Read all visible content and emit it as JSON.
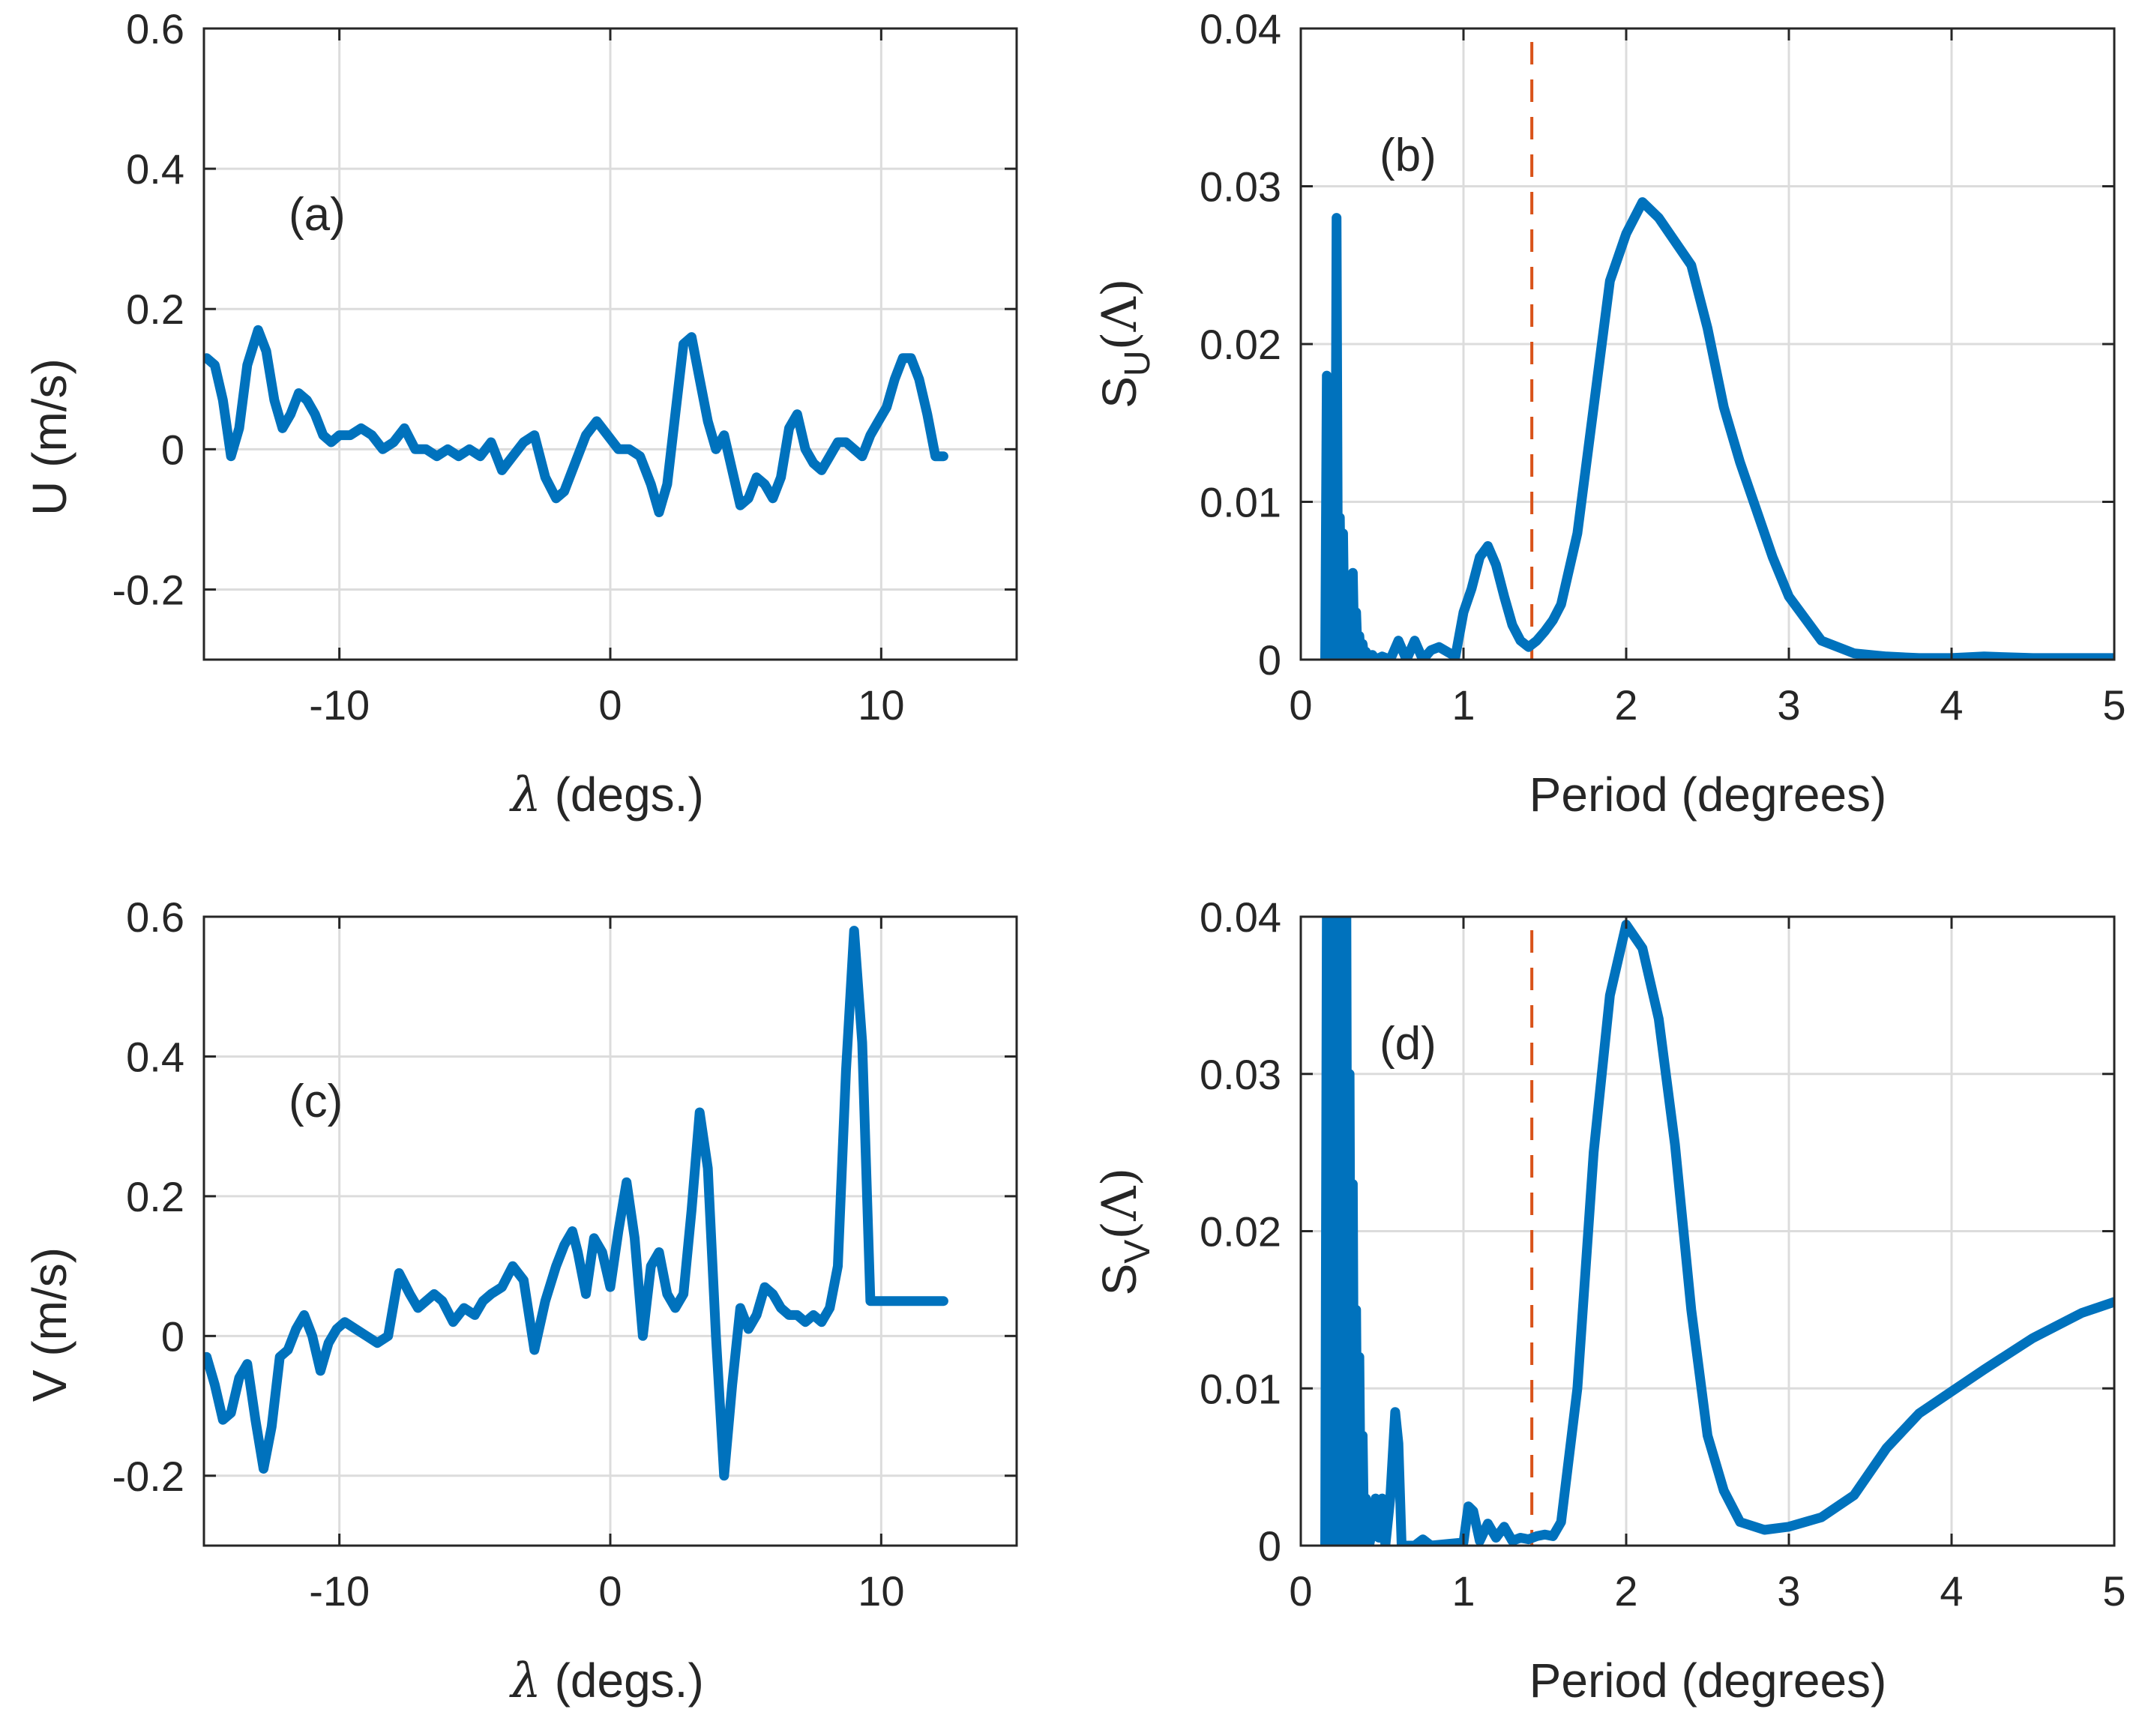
{
  "figure": {
    "panels": [
      {
        "id": "a",
        "label": "(a)",
        "ylabel_text": "U (m/s)",
        "xlabel_symbol": "λ",
        "xlabel_text": " (degs.)"
      },
      {
        "id": "b",
        "label": "(b)",
        "ylabel_base": "S",
        "ylabel_sub": "U",
        "ylabel_arg": "(Λ)",
        "xlabel_text": "Period (degrees)"
      },
      {
        "id": "c",
        "label": "(c)",
        "ylabel_text": "V (m/s)",
        "xlabel_symbol": "λ",
        "xlabel_text": " (degs.)"
      },
      {
        "id": "d",
        "label": "(d)",
        "ylabel_base": "S",
        "ylabel_sub": "V",
        "ylabel_arg": "(Λ)",
        "xlabel_text": "Period (degrees)"
      }
    ]
  },
  "colors": {
    "line": "#0072BD",
    "dashed": "#D95319",
    "grid": "#dcdcdc",
    "axis": "#262626"
  },
  "chart_data": [
    {
      "id": "a",
      "type": "line",
      "title": "(a)",
      "xlabel": "λ (degs.)",
      "ylabel": "U (m/s)",
      "xlim": [
        -15,
        15
      ],
      "ylim": [
        -0.3,
        0.6
      ],
      "xticks": [
        -10,
        0,
        10
      ],
      "xtick_labels": [
        "-10",
        "0",
        "10"
      ],
      "yticks": [
        -0.2,
        0,
        0.2,
        0.4,
        0.6
      ],
      "ytick_labels": [
        "-0.2",
        "0",
        "0.2",
        "0.4",
        "0.6"
      ],
      "grid": true,
      "series": [
        {
          "name": "U",
          "x": [
            -14.9,
            -14.6,
            -14.3,
            -14.0,
            -13.7,
            -13.4,
            -13.0,
            -12.7,
            -12.4,
            -12.1,
            -11.8,
            -11.5,
            -11.2,
            -10.9,
            -10.6,
            -10.3,
            -10.0,
            -9.6,
            -9.2,
            -8.8,
            -8.4,
            -8.0,
            -7.6,
            -7.2,
            -6.8,
            -6.4,
            -6.0,
            -5.6,
            -5.2,
            -4.8,
            -4.4,
            -4.0,
            -3.6,
            -3.2,
            -2.8,
            -2.4,
            -2.0,
            -1.7,
            -1.3,
            -0.9,
            -0.5,
            -0.1,
            0.3,
            0.7,
            1.1,
            1.5,
            1.8,
            2.1,
            2.4,
            2.7,
            3.0,
            3.3,
            3.6,
            3.9,
            4.2,
            4.5,
            4.8,
            5.1,
            5.4,
            5.7,
            6.0,
            6.3,
            6.6,
            6.9,
            7.2,
            7.5,
            7.8,
            8.1,
            8.4,
            8.7,
            9.0,
            9.3,
            9.6,
            9.9,
            10.2,
            10.5,
            10.8,
            11.1,
            11.4,
            11.7,
            12.0,
            12.3
          ],
          "y": [
            0.13,
            0.12,
            0.07,
            -0.01,
            0.03,
            0.12,
            0.17,
            0.14,
            0.07,
            0.03,
            0.05,
            0.08,
            0.07,
            0.05,
            0.02,
            0.01,
            0.02,
            0.02,
            0.03,
            0.02,
            0.0,
            0.01,
            0.03,
            0.0,
            0.0,
            -0.01,
            0.0,
            -0.01,
            0.0,
            -0.01,
            0.01,
            -0.03,
            -0.01,
            0.01,
            0.02,
            -0.04,
            -0.07,
            -0.06,
            -0.02,
            0.02,
            0.04,
            0.02,
            0.0,
            0.0,
            -0.01,
            -0.05,
            -0.09,
            -0.05,
            0.05,
            0.15,
            0.16,
            0.1,
            0.04,
            0.0,
            0.02,
            -0.03,
            -0.08,
            -0.07,
            -0.04,
            -0.05,
            -0.07,
            -0.04,
            0.03,
            0.05,
            0.0,
            -0.02,
            -0.03,
            -0.01,
            0.01,
            0.01,
            0.0,
            -0.01,
            0.02,
            0.04,
            0.06,
            0.1,
            0.13,
            0.13,
            0.1,
            0.05,
            -0.01,
            -0.01
          ]
        }
      ]
    },
    {
      "id": "b",
      "type": "line",
      "title": "(b)",
      "xlabel": "Period (degrees)",
      "ylabel": "S_U(Λ)",
      "xlim": [
        0,
        5
      ],
      "ylim": [
        0,
        0.04
      ],
      "xticks": [
        0,
        1,
        2,
        3,
        4,
        5
      ],
      "xtick_labels": [
        "0",
        "1",
        "2",
        "3",
        "4",
        "5"
      ],
      "yticks": [
        0,
        0.01,
        0.02,
        0.03,
        0.04
      ],
      "ytick_labels": [
        "0",
        "0.01",
        "0.02",
        "0.03",
        "0.04"
      ],
      "grid": true,
      "vline": {
        "x": 1.42,
        "style": "dashed"
      },
      "series": [
        {
          "name": "S_U",
          "x": [
            0.15,
            0.16,
            0.17,
            0.18,
            0.19,
            0.2,
            0.21,
            0.22,
            0.23,
            0.24,
            0.25,
            0.26,
            0.27,
            0.28,
            0.29,
            0.3,
            0.31,
            0.32,
            0.33,
            0.34,
            0.35,
            0.36,
            0.37,
            0.38,
            0.39,
            0.4,
            0.42,
            0.44,
            0.46,
            0.5,
            0.55,
            0.6,
            0.65,
            0.7,
            0.75,
            0.8,
            0.85,
            0.9,
            0.95,
            1.0,
            1.05,
            1.1,
            1.15,
            1.2,
            1.25,
            1.3,
            1.35,
            1.4,
            1.45,
            1.5,
            1.55,
            1.6,
            1.7,
            1.8,
            1.9,
            2.0,
            2.1,
            2.2,
            2.3,
            2.4,
            2.5,
            2.6,
            2.7,
            2.8,
            2.9,
            3.0,
            3.2,
            3.4,
            3.6,
            3.8,
            4.0,
            4.2,
            4.5,
            5.0
          ],
          "y": [
            0.0,
            0.018,
            0.0,
            0.015,
            0.0,
            0.012,
            0.0,
            0.028,
            0.0,
            0.009,
            0.0,
            0.008,
            0.0,
            0.003,
            0.0,
            0.005,
            0.0,
            0.0055,
            0.0,
            0.003,
            0.0,
            0.0015,
            0.0,
            0.001,
            0.0,
            0.0005,
            0.0,
            0.0003,
            0.0,
            0.0002,
            0.0,
            0.0012,
            0.0,
            0.0012,
            0.0,
            0.0006,
            0.0008,
            0.0005,
            0.0002,
            0.003,
            0.0045,
            0.0065,
            0.0072,
            0.006,
            0.004,
            0.0022,
            0.0012,
            0.0008,
            0.0012,
            0.0018,
            0.0025,
            0.0035,
            0.008,
            0.016,
            0.024,
            0.027,
            0.029,
            0.028,
            0.0265,
            0.025,
            0.021,
            0.016,
            0.0125,
            0.0095,
            0.0065,
            0.004,
            0.0012,
            0.0004,
            0.0002,
            0.0001,
            0.0001,
            0.0002,
            0.0001,
            0.0001
          ]
        }
      ]
    },
    {
      "id": "c",
      "type": "line",
      "title": "(c)",
      "xlabel": "λ (degs.)",
      "ylabel": "V (m/s)",
      "xlim": [
        -15,
        15
      ],
      "ylim": [
        -0.3,
        0.6
      ],
      "xticks": [
        -10,
        0,
        10
      ],
      "xtick_labels": [
        "-10",
        "0",
        "10"
      ],
      "yticks": [
        -0.2,
        0,
        0.2,
        0.4,
        0.6
      ],
      "ytick_labels": [
        "-0.2",
        "0",
        "0.2",
        "0.4",
        "0.6"
      ],
      "grid": true,
      "series": [
        {
          "name": "V",
          "x": [
            -14.9,
            -14.6,
            -14.3,
            -14.0,
            -13.7,
            -13.4,
            -13.1,
            -12.8,
            -12.5,
            -12.2,
            -11.9,
            -11.6,
            -11.3,
            -11.0,
            -10.7,
            -10.4,
            -10.1,
            -9.8,
            -9.4,
            -9.0,
            -8.6,
            -8.2,
            -7.8,
            -7.4,
            -7.1,
            -6.8,
            -6.5,
            -6.2,
            -5.8,
            -5.4,
            -5.0,
            -4.7,
            -4.4,
            -4.0,
            -3.6,
            -3.2,
            -2.8,
            -2.4,
            -2.0,
            -1.7,
            -1.4,
            -1.2,
            -0.9,
            -0.6,
            -0.3,
            0.0,
            0.3,
            0.6,
            0.9,
            1.2,
            1.5,
            1.8,
            2.1,
            2.4,
            2.7,
            3.0,
            3.3,
            3.6,
            3.9,
            4.2,
            4.5,
            4.8,
            5.1,
            5.4,
            5.7,
            6.0,
            6.3,
            6.6,
            6.9,
            7.2,
            7.5,
            7.8,
            8.1,
            8.4,
            8.7,
            9.0,
            9.3,
            9.6,
            9.9,
            10.2,
            10.5,
            10.8,
            11.1,
            11.4,
            11.7,
            12.0,
            12.3
          ],
          "y": [
            -0.03,
            -0.07,
            -0.12,
            -0.11,
            -0.06,
            -0.04,
            -0.12,
            -0.19,
            -0.13,
            -0.03,
            -0.02,
            0.01,
            0.03,
            0.0,
            -0.05,
            -0.01,
            0.01,
            0.02,
            0.01,
            0.0,
            -0.01,
            0.0,
            0.09,
            0.06,
            0.04,
            0.05,
            0.06,
            0.05,
            0.02,
            0.04,
            0.03,
            0.05,
            0.06,
            0.07,
            0.1,
            0.08,
            -0.02,
            0.05,
            0.1,
            0.13,
            0.15,
            0.12,
            0.06,
            0.14,
            0.12,
            0.07,
            0.15,
            0.22,
            0.14,
            0.0,
            0.1,
            0.12,
            0.06,
            0.04,
            0.06,
            0.18,
            0.32,
            0.24,
            0.0,
            -0.2,
            -0.07,
            0.04,
            0.01,
            0.03,
            0.07,
            0.06,
            0.04,
            0.03,
            0.03,
            0.02,
            0.03,
            0.02,
            0.04,
            0.1,
            0.38,
            0.58,
            0.42,
            0.05,
            0.05,
            0.05,
            0.05,
            0.05,
            0.05,
            0.05,
            0.05,
            0.05,
            0.05
          ]
        }
      ]
    },
    {
      "id": "d",
      "type": "line",
      "title": "(d)",
      "xlabel": "Period (degrees)",
      "ylabel": "S_V(Λ)",
      "xlim": [
        0,
        5
      ],
      "ylim": [
        0,
        0.04
      ],
      "xticks": [
        0,
        1,
        2,
        3,
        4,
        5
      ],
      "xtick_labels": [
        "0",
        "1",
        "2",
        "3",
        "4",
        "5"
      ],
      "yticks": [
        0,
        0.01,
        0.02,
        0.03,
        0.04
      ],
      "ytick_labels": [
        "0",
        "0.01",
        "0.02",
        "0.03",
        "0.04"
      ],
      "grid": true,
      "vline": {
        "x": 1.42,
        "style": "dashed"
      },
      "series": [
        {
          "name": "S_V",
          "x": [
            0.15,
            0.16,
            0.17,
            0.18,
            0.19,
            0.2,
            0.21,
            0.22,
            0.23,
            0.24,
            0.25,
            0.26,
            0.27,
            0.28,
            0.29,
            0.3,
            0.31,
            0.32,
            0.33,
            0.34,
            0.35,
            0.36,
            0.37,
            0.38,
            0.39,
            0.4,
            0.42,
            0.44,
            0.46,
            0.48,
            0.5,
            0.52,
            0.55,
            0.58,
            0.6,
            0.62,
            0.65,
            0.7,
            0.75,
            0.8,
            0.9,
            1.0,
            1.03,
            1.06,
            1.1,
            1.15,
            1.2,
            1.25,
            1.3,
            1.35,
            1.4,
            1.45,
            1.5,
            1.55,
            1.6,
            1.7,
            1.8,
            1.9,
            2.0,
            2.1,
            2.2,
            2.3,
            2.4,
            2.5,
            2.6,
            2.7,
            2.85,
            3.0,
            3.2,
            3.4,
            3.6,
            3.8,
            4.0,
            4.2,
            4.5,
            4.8,
            5.0
          ],
          "y": [
            0.0,
            0.04,
            0.0,
            0.04,
            0.0,
            0.04,
            0.0,
            0.04,
            0.0,
            0.04,
            0.0,
            0.04,
            0.0,
            0.04,
            0.0,
            0.03,
            0.0,
            0.023,
            0.0,
            0.015,
            0.0,
            0.012,
            0.0,
            0.007,
            0.0,
            0.003,
            0.0,
            0.001,
            0.003,
            0.0005,
            0.003,
            0.0,
            0.003,
            0.0085,
            0.0065,
            0.0,
            0.0,
            0.0,
            0.0004,
            0.0,
            0.0001,
            0.0002,
            0.0025,
            0.0022,
            0.0003,
            0.0014,
            0.0005,
            0.0012,
            0.0003,
            0.0005,
            0.0004,
            0.0006,
            0.0007,
            0.0006,
            0.0015,
            0.01,
            0.025,
            0.035,
            0.0395,
            0.038,
            0.0335,
            0.0255,
            0.015,
            0.007,
            0.0035,
            0.0015,
            0.001,
            0.0012,
            0.0018,
            0.0032,
            0.0062,
            0.0084,
            0.0098,
            0.0112,
            0.0132,
            0.0148,
            0.0155
          ]
        }
      ]
    }
  ]
}
